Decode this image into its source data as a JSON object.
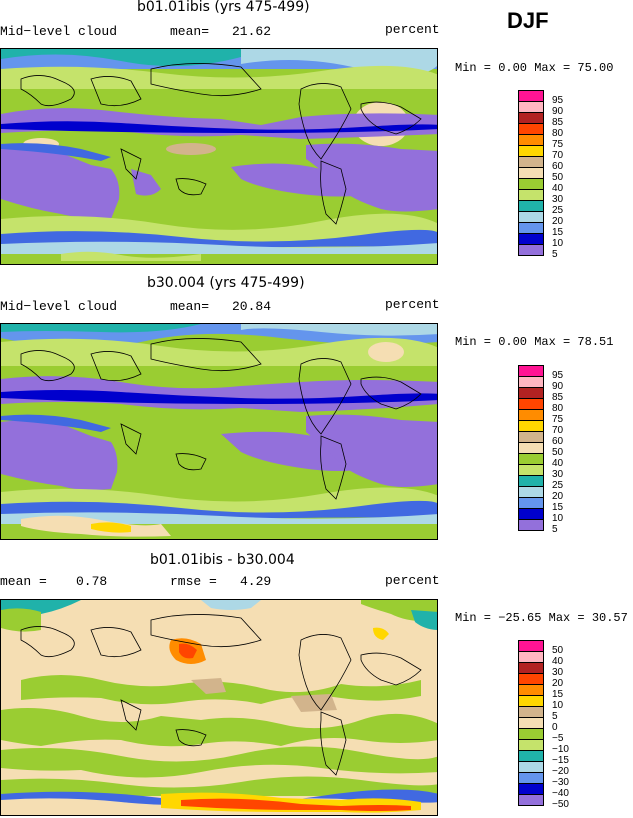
{
  "season": "DJF",
  "colors": {
    "purple": "#9370db",
    "darkblue": "#0000cd",
    "blue": "#4169e1",
    "lightblue": "#6495ed",
    "paleblue": "#add8e6",
    "teal": "#20b2aa",
    "green": "#9acd32",
    "palegreen": "#c5e36b",
    "tan": "#f5deb3",
    "khaki": "#d2b48c",
    "yellow": "#ffd700",
    "orange": "#ff8c00",
    "red": "#ff4500",
    "darkred": "#b22222",
    "pink": "#ffb6c1",
    "magenta": "#ff1493"
  },
  "panels": [
    {
      "id": "top",
      "title": "b01.01ibis (yrs 475-499)",
      "left_label": "Mid−level cloud",
      "mean_label": "mean=",
      "mean_value": "21.62",
      "units": "percent",
      "minmax": "Min =    0.00 Max =   75.00",
      "chart_data": {
        "type": "heatmap",
        "title": "b01.01ibis (yrs 475-499)",
        "variable": "Mid-level cloud",
        "units": "percent",
        "mean": 21.62,
        "min": 0.0,
        "max": 75.0,
        "levels": [
          5,
          10,
          15,
          20,
          25,
          30,
          40,
          50,
          60,
          70,
          75,
          80,
          85,
          90,
          95
        ]
      },
      "colorbar_labels": [
        "95",
        "90",
        "85",
        "80",
        "75",
        "70",
        "60",
        "50",
        "40",
        "30",
        "25",
        "20",
        "15",
        "10",
        "5"
      ]
    },
    {
      "id": "middle",
      "title": "b30.004 (yrs 475-499)",
      "left_label": "Mid−level cloud",
      "mean_label": "mean=",
      "mean_value": "20.84",
      "units": "percent",
      "minmax": "Min =    0.00 Max =   78.51",
      "chart_data": {
        "type": "heatmap",
        "title": "b30.004 (yrs 475-499)",
        "variable": "Mid-level cloud",
        "units": "percent",
        "mean": 20.84,
        "min": 0.0,
        "max": 78.51,
        "levels": [
          5,
          10,
          15,
          20,
          25,
          30,
          40,
          50,
          60,
          70,
          75,
          80,
          85,
          90,
          95
        ]
      },
      "colorbar_labels": [
        "95",
        "90",
        "85",
        "80",
        "75",
        "70",
        "60",
        "50",
        "40",
        "30",
        "25",
        "20",
        "15",
        "10",
        "5"
      ]
    },
    {
      "id": "bottom",
      "title": "b01.01ibis - b30.004",
      "left_label": "mean =",
      "mean_label": "rmse =",
      "left_value": "0.78",
      "mean_value": "4.29",
      "units": "percent",
      "minmax": "Min = −25.65 Max =   30.57",
      "chart_data": {
        "type": "heatmap",
        "title": "b01.01ibis - b30.004",
        "units": "percent",
        "mean": 0.78,
        "rmse": 4.29,
        "min": -25.65,
        "max": 30.57,
        "levels": [
          -50,
          -40,
          -30,
          -20,
          -15,
          -10,
          -5,
          0,
          5,
          10,
          15,
          20,
          30,
          40,
          50
        ]
      },
      "colorbar_labels": [
        "50",
        "40",
        "30",
        "20",
        "15",
        "10",
        "5",
        "0",
        "−5",
        "−10",
        "−15",
        "−20",
        "−30",
        "−40",
        "−50"
      ]
    }
  ]
}
